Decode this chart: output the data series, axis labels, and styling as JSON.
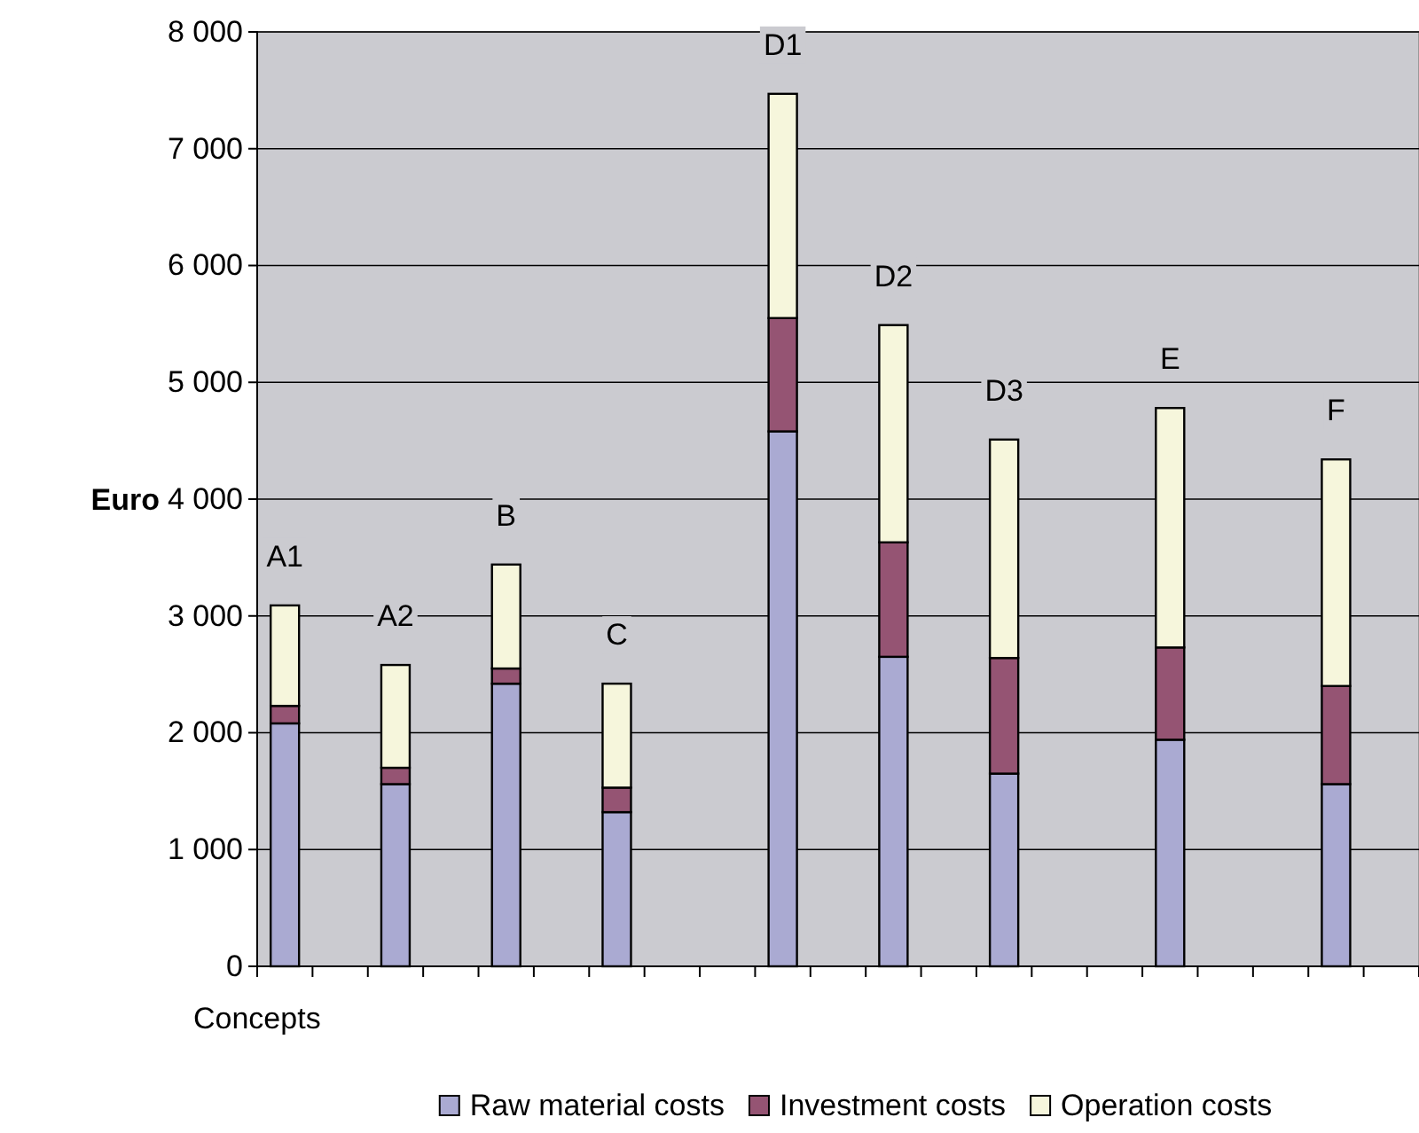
{
  "chart_data": {
    "type": "bar",
    "stacked": true,
    "xlabel": "Concepts",
    "ylabel": "Euro",
    "categories": [
      "A1",
      null,
      "A2",
      null,
      "B",
      null,
      "C",
      null,
      null,
      "D1",
      null,
      "D2",
      null,
      "D3",
      null,
      null,
      "E",
      null,
      null,
      "F",
      null
    ],
    "series": [
      {
        "name": "Raw material costs",
        "color": "#aaaad2",
        "values": [
          2080,
          null,
          1560,
          null,
          2420,
          null,
          1320,
          null,
          null,
          4580,
          null,
          2650,
          null,
          1650,
          null,
          null,
          1940,
          null,
          null,
          1560,
          null
        ]
      },
      {
        "name": "Investment costs",
        "color": "#955473",
        "values": [
          150,
          null,
          140,
          null,
          130,
          null,
          210,
          null,
          null,
          970,
          null,
          980,
          null,
          990,
          null,
          null,
          790,
          null,
          null,
          840,
          null
        ]
      },
      {
        "name": "Operation costs",
        "color": "#f6f6dc",
        "values": [
          860,
          null,
          880,
          null,
          890,
          null,
          890,
          null,
          null,
          1920,
          null,
          1860,
          null,
          1870,
          null,
          null,
          2050,
          null,
          null,
          1940,
          null
        ]
      }
    ],
    "ylim": [
      0,
      8000
    ],
    "yticks": [
      0,
      {
        "value": 1000,
        "label": "1 000"
      },
      {
        "value": 2000,
        "label": "2 000"
      },
      {
        "value": 3000,
        "label": "3 000"
      },
      {
        "value": 4000,
        "label": "4 000"
      },
      {
        "value": 5000,
        "label": "5 000"
      },
      {
        "value": 6000,
        "label": "6 000"
      },
      {
        "value": 7000,
        "label": "7 000"
      },
      {
        "value": 8000,
        "label": "8 000"
      }
    ],
    "grid": "y",
    "legend": "bottom"
  }
}
